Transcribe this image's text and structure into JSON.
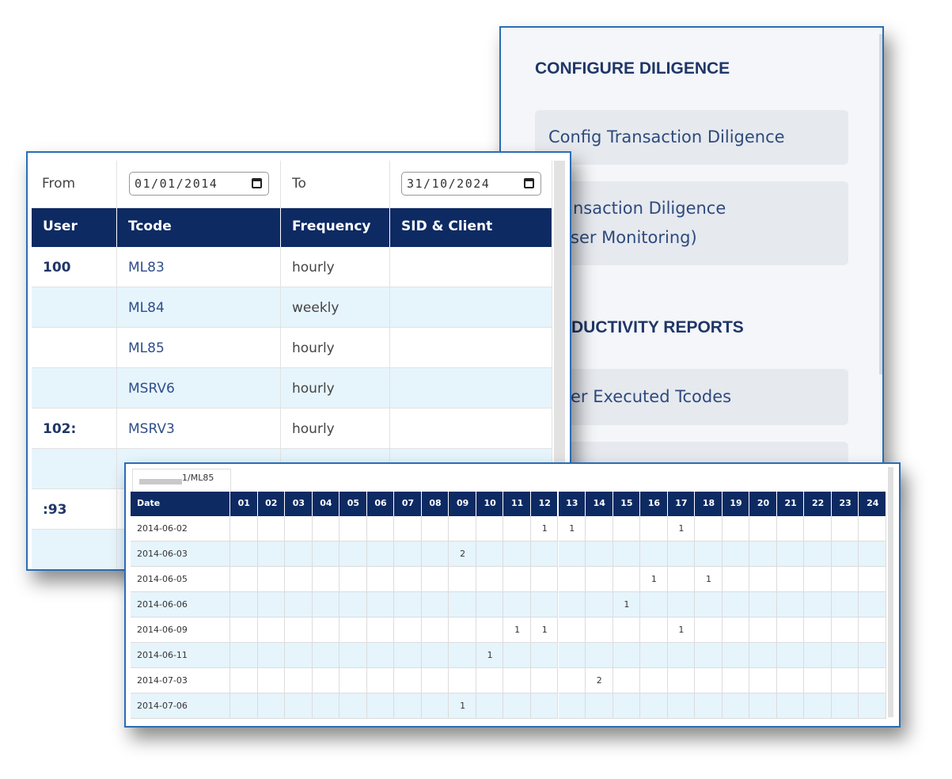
{
  "right_panel": {
    "sections": [
      {
        "heading": "CONFIGURE DILIGENCE",
        "items": [
          [
            "Config Transaction Diligence"
          ],
          [
            "nsaction Diligence",
            "ser Monitoring)"
          ]
        ]
      },
      {
        "heading": "DUCTIVITY REPORTS",
        "items": [
          [
            "er Executed Tcodes"
          ]
        ]
      }
    ]
  },
  "left_table": {
    "from_label": "From",
    "from_date": "01/01/2014",
    "to_label": "To",
    "to_date": "31/10/2024",
    "columns": [
      "User",
      "Tcode",
      "Frequency",
      "SID & Client"
    ],
    "rows": [
      [
        "100",
        "ML83",
        "hourly",
        null
      ],
      [
        null,
        "ML84",
        "weekly",
        null
      ],
      [
        null,
        "ML85",
        "hourly",
        null
      ],
      [
        null,
        "MSRV6",
        "hourly",
        null
      ],
      [
        "102:",
        "MSRV3",
        "hourly",
        null
      ],
      [
        null,
        null,
        null,
        null
      ],
      [
        ":93",
        null,
        null,
        null
      ],
      [
        null,
        null,
        null,
        null
      ]
    ]
  },
  "bottom_table": {
    "tab": "1/ML85",
    "columns": [
      "Date",
      "01",
      "02",
      "03",
      "04",
      "05",
      "06",
      "07",
      "08",
      "09",
      "10",
      "11",
      "12",
      "13",
      "14",
      "15",
      "16",
      "17",
      "18",
      "19",
      "20",
      "21",
      "22",
      "23",
      "24"
    ],
    "rows": [
      [
        "2014-06-02",
        null,
        null,
        null,
        null,
        null,
        null,
        null,
        null,
        null,
        null,
        null,
        1,
        1,
        null,
        null,
        null,
        1,
        null,
        null,
        null,
        null,
        null,
        null,
        null
      ],
      [
        "2014-06-03",
        null,
        null,
        null,
        null,
        null,
        null,
        null,
        null,
        2,
        null,
        null,
        null,
        null,
        null,
        null,
        null,
        null,
        null,
        null,
        null,
        null,
        null,
        null,
        null
      ],
      [
        "2014-06-05",
        null,
        null,
        null,
        null,
        null,
        null,
        null,
        null,
        null,
        null,
        null,
        null,
        null,
        null,
        null,
        1,
        null,
        1,
        null,
        null,
        null,
        null,
        null,
        null
      ],
      [
        "2014-06-06",
        null,
        null,
        null,
        null,
        null,
        null,
        null,
        null,
        null,
        null,
        null,
        null,
        null,
        null,
        1,
        null,
        null,
        null,
        null,
        null,
        null,
        null,
        null,
        null
      ],
      [
        "2014-06-09",
        null,
        null,
        null,
        null,
        null,
        null,
        null,
        null,
        null,
        null,
        1,
        1,
        null,
        null,
        null,
        null,
        1,
        null,
        null,
        null,
        null,
        null,
        null,
        null
      ],
      [
        "2014-06-11",
        null,
        null,
        null,
        null,
        null,
        null,
        null,
        null,
        null,
        1,
        null,
        null,
        null,
        null,
        null,
        null,
        null,
        null,
        null,
        null,
        null,
        null,
        null,
        null
      ],
      [
        "2014-07-03",
        null,
        null,
        null,
        null,
        null,
        null,
        null,
        null,
        null,
        null,
        null,
        null,
        null,
        2,
        null,
        null,
        null,
        null,
        null,
        null,
        null,
        null,
        null,
        null
      ],
      [
        "2014-07-06",
        null,
        null,
        null,
        null,
        null,
        null,
        null,
        null,
        1,
        null,
        null,
        null,
        null,
        null,
        null,
        null,
        null,
        null,
        null,
        null,
        null,
        null,
        null,
        null
      ]
    ]
  }
}
